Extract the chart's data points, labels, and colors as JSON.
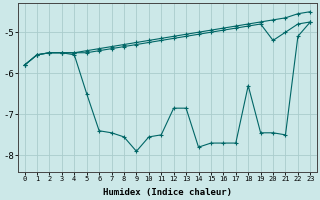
{
  "xlabel": "Humidex (Indice chaleur)",
  "bg_color": "#cce8e8",
  "grid_color": "#aacccc",
  "line_color": "#006666",
  "x_values": [
    0,
    1,
    2,
    3,
    4,
    5,
    6,
    7,
    8,
    9,
    10,
    11,
    12,
    13,
    14,
    15,
    16,
    17,
    18,
    19,
    20,
    21,
    22,
    23
  ],
  "line1": [
    -5.8,
    -5.55,
    -5.5,
    -5.5,
    -5.5,
    -5.45,
    -5.4,
    -5.35,
    -5.3,
    -5.25,
    -5.2,
    -5.15,
    -5.1,
    -5.05,
    -5.0,
    -4.95,
    -4.9,
    -4.85,
    -4.8,
    -4.75,
    -4.7,
    -4.65,
    -4.55,
    -4.5
  ],
  "line2": [
    -5.8,
    -5.55,
    -5.5,
    -5.5,
    -5.5,
    -5.5,
    -5.45,
    -5.4,
    -5.35,
    -5.3,
    -5.25,
    -5.2,
    -5.15,
    -5.1,
    -5.05,
    -5.0,
    -4.95,
    -4.9,
    -4.85,
    -4.8,
    -5.2,
    -5.0,
    -4.8,
    -4.75
  ],
  "line3": [
    -5.8,
    -5.55,
    -5.5,
    -5.5,
    -5.55,
    -6.5,
    -7.4,
    -7.45,
    -7.55,
    -7.9,
    -7.55,
    -7.5,
    -6.85,
    -6.85,
    -7.8,
    -7.7,
    -7.7,
    -7.7,
    -6.3,
    -7.45,
    -7.45,
    -7.5,
    -5.1,
    -4.75
  ],
  "ylim": [
    -8.4,
    -4.3
  ],
  "xlim": [
    -0.5,
    23.5
  ],
  "yticks": [
    -8,
    -7,
    -6,
    -5
  ],
  "xticks": [
    0,
    1,
    2,
    3,
    4,
    5,
    6,
    7,
    8,
    9,
    10,
    11,
    12,
    13,
    14,
    15,
    16,
    17,
    18,
    19,
    20,
    21,
    22,
    23
  ]
}
